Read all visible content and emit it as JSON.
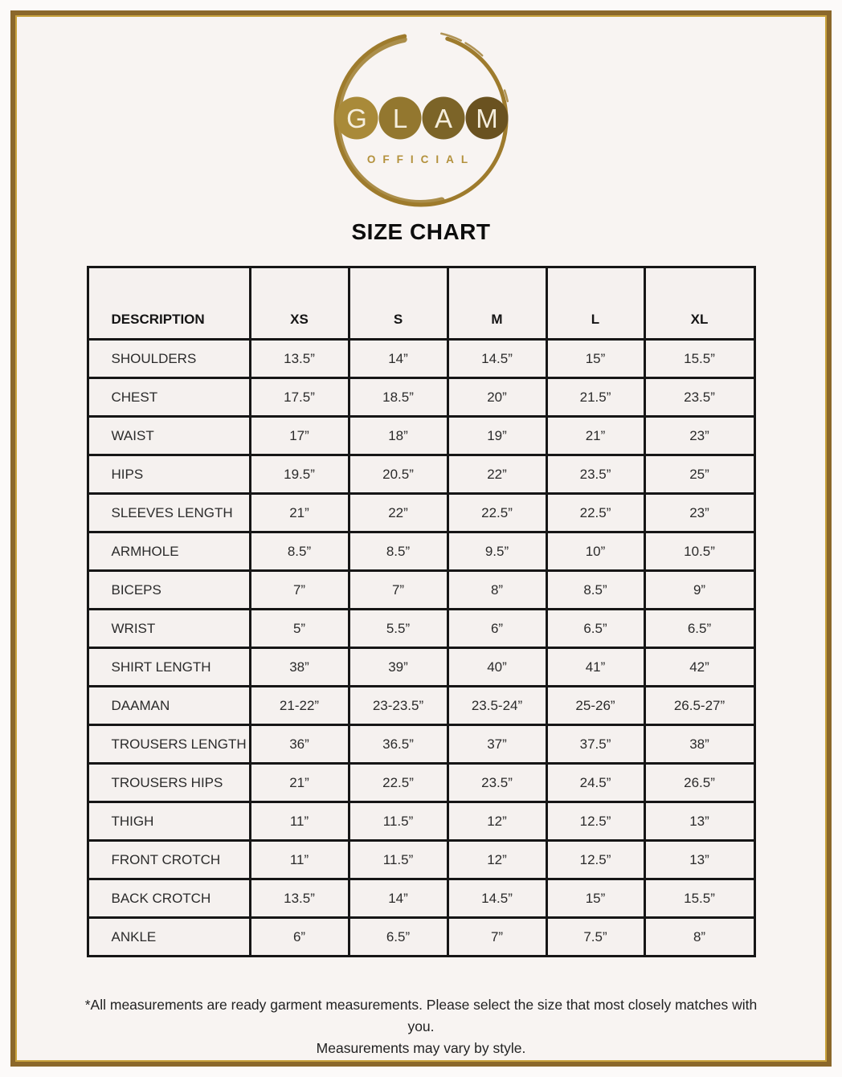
{
  "page": {
    "title": "SIZE CHART"
  },
  "logo": {
    "letters": [
      "G",
      "L",
      "A",
      "M"
    ],
    "subtitle": "OFFICIAL",
    "circle_colors": [
      "#a98a39",
      "#93772f",
      "#7c6428",
      "#6a5220"
    ],
    "letter_color": "#f5eedd",
    "ring_color": "#9e7b2d",
    "subtitle_color": "#b3913c"
  },
  "footer": {
    "line1": "*All measurements are ready garment measurements. Please select the size that most closely matches with you.",
    "line2": "Measurements may vary by style."
  },
  "chart_data": {
    "type": "table",
    "columns": [
      "DESCRIPTION",
      "XS",
      "S",
      "M",
      "L",
      "XL"
    ],
    "rows": [
      {
        "label": "SHOULDERS",
        "values": [
          "13.5”",
          "14”",
          "14.5”",
          "15”",
          "15.5”"
        ]
      },
      {
        "label": "CHEST",
        "values": [
          "17.5”",
          "18.5”",
          "20”",
          "21.5”",
          "23.5”"
        ]
      },
      {
        "label": "WAIST",
        "values": [
          "17”",
          "18”",
          "19”",
          "21”",
          "23”"
        ]
      },
      {
        "label": "HIPS",
        "values": [
          "19.5”",
          "20.5”",
          "22”",
          "23.5”",
          "25”"
        ]
      },
      {
        "label": "SLEEVES LENGTH",
        "values": [
          "21”",
          "22”",
          "22.5”",
          "22.5”",
          "23”"
        ]
      },
      {
        "label": "ARMHOLE",
        "values": [
          "8.5”",
          "8.5”",
          "9.5”",
          "10”",
          "10.5”"
        ]
      },
      {
        "label": "BICEPS",
        "values": [
          "7”",
          "7”",
          "8”",
          "8.5”",
          "9”"
        ]
      },
      {
        "label": "WRIST",
        "values": [
          "5”",
          "5.5”",
          "6”",
          "6.5”",
          "6.5”"
        ]
      },
      {
        "label": "SHIRT LENGTH",
        "values": [
          "38”",
          "39”",
          "40”",
          "41”",
          "42”"
        ]
      },
      {
        "label": "DAAMAN",
        "values": [
          "21-22”",
          "23-23.5”",
          "23.5-24”",
          "25-26”",
          "26.5-27”"
        ]
      },
      {
        "label": "TROUSERS LENGTH",
        "values": [
          "36”",
          "36.5”",
          "37”",
          "37.5”",
          "38”"
        ]
      },
      {
        "label": "TROUSERS HIPS",
        "values": [
          "21”",
          "22.5”",
          "23.5”",
          "24.5”",
          "26.5”"
        ]
      },
      {
        "label": "THIGH",
        "values": [
          "11”",
          "11.5”",
          "12”",
          "12.5”",
          "13”"
        ]
      },
      {
        "label": "FRONT CROTCH",
        "values": [
          "11”",
          "11.5”",
          "12”",
          "12.5”",
          "13”"
        ]
      },
      {
        "label": "BACK CROTCH",
        "values": [
          "13.5”",
          "14”",
          "14.5”",
          "15”",
          "15.5”"
        ]
      },
      {
        "label": "ANKLE",
        "values": [
          "6”",
          "6.5”",
          "7”",
          "7.5”",
          "8”"
        ]
      }
    ]
  }
}
